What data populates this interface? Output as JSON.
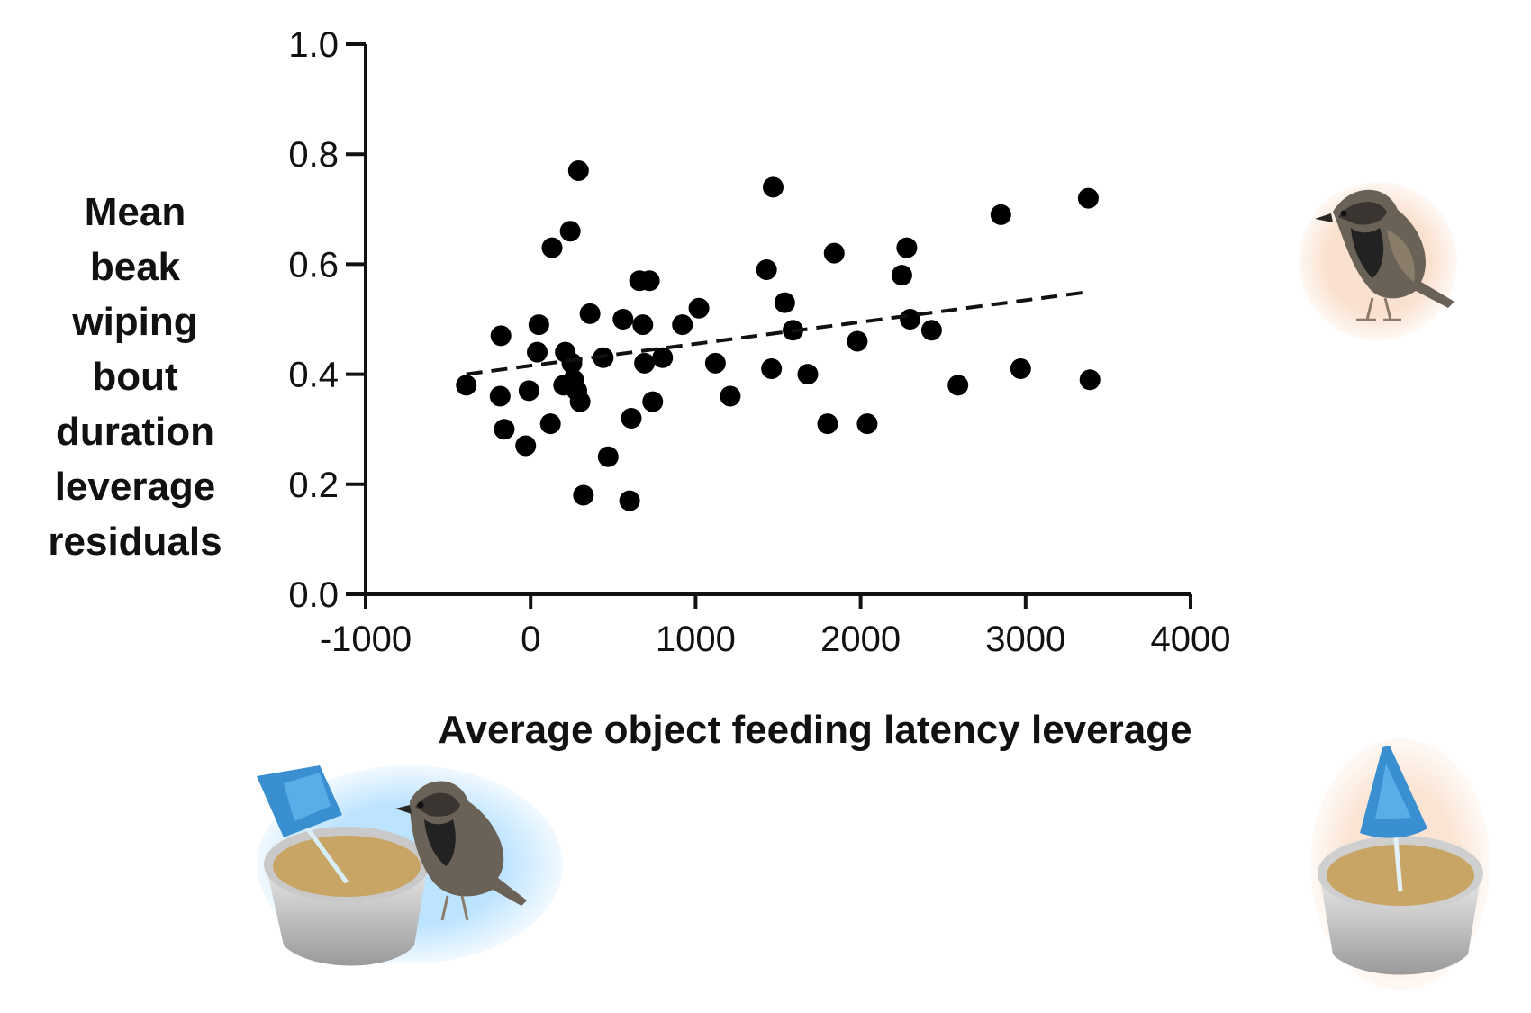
{
  "chart_data": {
    "type": "scatter",
    "xlabel": "Average object feeding latency leverage",
    "ylabel_lines": [
      "Mean",
      "beak",
      "wiping",
      "bout",
      "duration",
      "leverage",
      "residuals"
    ],
    "xlim": [
      -1000,
      4000
    ],
    "ylim": [
      0.0,
      1.0
    ],
    "xticks": [
      -1000,
      0,
      1000,
      2000,
      3000,
      4000
    ],
    "yticks": [
      0.0,
      0.2,
      0.4,
      0.6,
      0.8,
      1.0
    ],
    "xtick_labels": [
      "-1000",
      "0",
      "1000",
      "2000",
      "3000",
      "4000"
    ],
    "ytick_labels": [
      "0.0",
      "0.2",
      "0.4",
      "0.6",
      "0.8",
      "1.0"
    ],
    "grid": false,
    "points": [
      {
        "x": -390,
        "y": 0.38
      },
      {
        "x": -180,
        "y": 0.47
      },
      {
        "x": -185,
        "y": 0.36
      },
      {
        "x": -160,
        "y": 0.3
      },
      {
        "x": -30,
        "y": 0.27
      },
      {
        "x": -10,
        "y": 0.37
      },
      {
        "x": 40,
        "y": 0.44
      },
      {
        "x": 50,
        "y": 0.49
      },
      {
        "x": 120,
        "y": 0.31
      },
      {
        "x": 130,
        "y": 0.63
      },
      {
        "x": 200,
        "y": 0.38
      },
      {
        "x": 210,
        "y": 0.44
      },
      {
        "x": 240,
        "y": 0.66
      },
      {
        "x": 250,
        "y": 0.42
      },
      {
        "x": 260,
        "y": 0.39
      },
      {
        "x": 280,
        "y": 0.37
      },
      {
        "x": 300,
        "y": 0.35
      },
      {
        "x": 290,
        "y": 0.77
      },
      {
        "x": 320,
        "y": 0.18
      },
      {
        "x": 360,
        "y": 0.51
      },
      {
        "x": 440,
        "y": 0.43
      },
      {
        "x": 470,
        "y": 0.25
      },
      {
        "x": 560,
        "y": 0.5
      },
      {
        "x": 600,
        "y": 0.17
      },
      {
        "x": 610,
        "y": 0.32
      },
      {
        "x": 660,
        "y": 0.57
      },
      {
        "x": 680,
        "y": 0.49
      },
      {
        "x": 690,
        "y": 0.42
      },
      {
        "x": 720,
        "y": 0.57
      },
      {
        "x": 740,
        "y": 0.35
      },
      {
        "x": 800,
        "y": 0.43
      },
      {
        "x": 920,
        "y": 0.49
      },
      {
        "x": 1020,
        "y": 0.52
      },
      {
        "x": 1120,
        "y": 0.42
      },
      {
        "x": 1210,
        "y": 0.36
      },
      {
        "x": 1430,
        "y": 0.59
      },
      {
        "x": 1460,
        "y": 0.41
      },
      {
        "x": 1470,
        "y": 0.74
      },
      {
        "x": 1540,
        "y": 0.53
      },
      {
        "x": 1590,
        "y": 0.48
      },
      {
        "x": 1680,
        "y": 0.4
      },
      {
        "x": 1800,
        "y": 0.31
      },
      {
        "x": 1840,
        "y": 0.62
      },
      {
        "x": 1980,
        "y": 0.46
      },
      {
        "x": 2040,
        "y": 0.31
      },
      {
        "x": 2250,
        "y": 0.58
      },
      {
        "x": 2280,
        "y": 0.63
      },
      {
        "x": 2300,
        "y": 0.5
      },
      {
        "x": 2430,
        "y": 0.48
      },
      {
        "x": 2590,
        "y": 0.38
      },
      {
        "x": 2850,
        "y": 0.69
      },
      {
        "x": 2970,
        "y": 0.41
      },
      {
        "x": 3380,
        "y": 0.72
      },
      {
        "x": 3390,
        "y": 0.39
      }
    ],
    "trendline": {
      "style": "dashed",
      "x": [
        -390,
        3390
      ],
      "y": [
        0.4,
        0.55
      ]
    }
  },
  "illustrations": [
    "sparrow-icon",
    "sparrow-with-umbrella-bowl-icon",
    "umbrella-bowl-icon"
  ],
  "colors": {
    "ink": "#111111",
    "points": "#000000",
    "background": "#ffffff"
  }
}
